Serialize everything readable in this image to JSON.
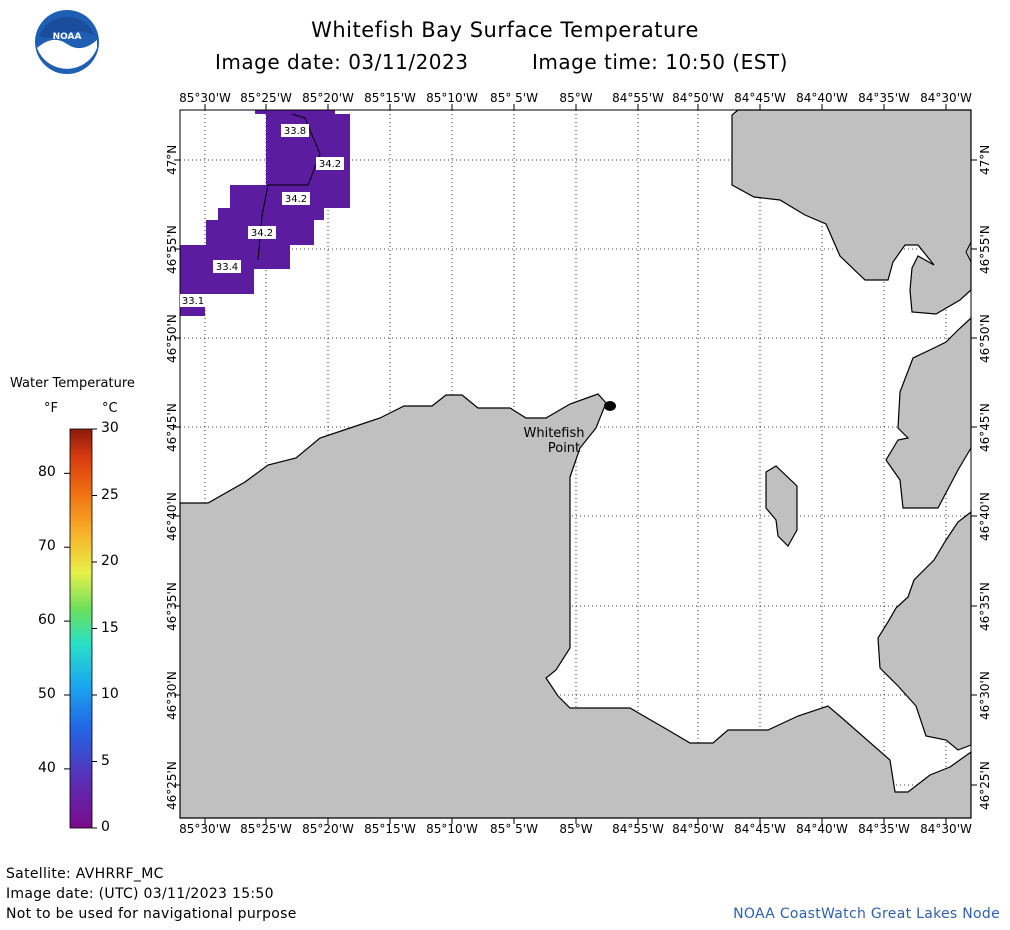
{
  "header": {
    "title": "Whitefish Bay Surface Temperature",
    "image_date": "Image date: 03/11/2023",
    "image_time": "Image time: 10:50 (EST)",
    "logo_text": "NOAA"
  },
  "map": {
    "longitude_labels": [
      "85°30'W",
      "85°25'W",
      "85°20'W",
      "85°15'W",
      "85°10'W",
      "85° 5'W",
      "85°W",
      "84°55'W",
      "84°50'W",
      "84°45'W",
      "84°40'W",
      "84°35'W",
      "84°30'W"
    ],
    "latitude_labels": [
      "47°N",
      "46°55'N",
      "46°50'N",
      "46°45'N",
      "46°40'N",
      "46°35'N",
      "46°30'N",
      "46°25'N"
    ],
    "place_label_line1": "Whitefish",
    "place_label_line2": "Point",
    "temperature_labels": [
      "33.8",
      "34.2",
      "34.2",
      "34.2",
      "33.4",
      "33.1"
    ],
    "land_color": "#c0c0c0",
    "water_temp_color": "#5b1ca0"
  },
  "legend": {
    "title": "Water Temperature",
    "unit_f": "°F",
    "unit_c": "°C",
    "f_ticks": [
      "80",
      "70",
      "60",
      "50",
      "40"
    ],
    "c_ticks": [
      "30",
      "25",
      "20",
      "15",
      "10",
      "5",
      "0"
    ]
  },
  "footer": {
    "satellite": "Satellite: AVHRRF_MC",
    "utc_date": "Image date: (UTC) 03/11/2023  15:50",
    "disclaimer": "Not to be used for navigational purpose",
    "credit": "NOAA CoastWatch Great Lakes Node"
  }
}
